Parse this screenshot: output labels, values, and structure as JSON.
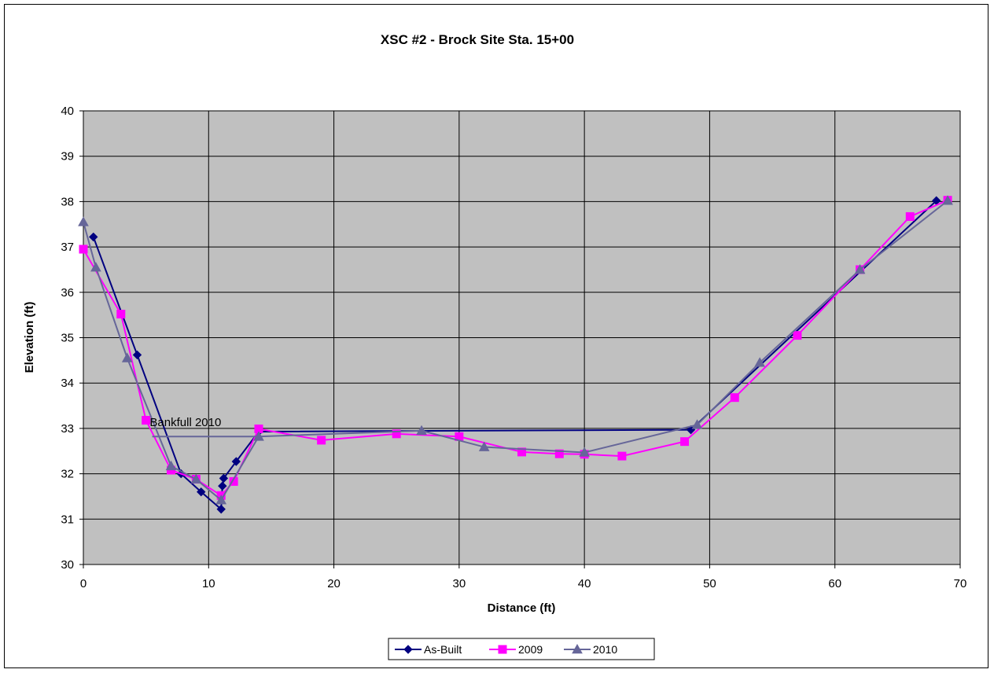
{
  "chart_data": {
    "type": "line",
    "title": "XSC #2 - Brock Site Sta. 15+00",
    "xlabel": "Distance (ft)",
    "ylabel": "Elevation (ft)",
    "xlim": [
      0,
      70
    ],
    "ylim": [
      30,
      40
    ],
    "xticks": [
      0,
      10,
      20,
      30,
      40,
      50,
      60,
      70
    ],
    "yticks": [
      30,
      31,
      32,
      33,
      34,
      35,
      36,
      37,
      38,
      39,
      40
    ],
    "grid": true,
    "legend_position": "bottom",
    "annotation": {
      "text": "Bankfull 2010",
      "x": 5.3,
      "y": 33.15
    },
    "series": [
      {
        "name": "As-Built",
        "color": "#000080",
        "marker": "diamond",
        "points": [
          [
            0.8,
            37.22
          ],
          [
            4.3,
            34.62
          ],
          [
            7.8,
            32.0
          ],
          [
            9.4,
            31.6
          ],
          [
            11.0,
            31.22
          ],
          [
            11.1,
            31.73
          ],
          [
            11.2,
            31.9
          ],
          [
            12.2,
            32.27
          ],
          [
            14.0,
            32.93
          ],
          [
            48.5,
            32.97
          ],
          [
            68.1,
            38.02
          ]
        ]
      },
      {
        "name": "2009",
        "color": "#ff00ff",
        "marker": "square",
        "points": [
          [
            0.0,
            36.95
          ],
          [
            3.0,
            35.52
          ],
          [
            5.0,
            33.18
          ],
          [
            7.0,
            32.08
          ],
          [
            9.0,
            31.88
          ],
          [
            11.0,
            31.52
          ],
          [
            12.0,
            31.83
          ],
          [
            14.0,
            32.99
          ],
          [
            19.0,
            32.74
          ],
          [
            25.0,
            32.88
          ],
          [
            30.0,
            32.82
          ],
          [
            35.0,
            32.48
          ],
          [
            38.0,
            32.44
          ],
          [
            40.0,
            32.43
          ],
          [
            43.0,
            32.39
          ],
          [
            48.0,
            32.71
          ],
          [
            52.0,
            33.68
          ],
          [
            57.0,
            35.05
          ],
          [
            62.0,
            36.5
          ],
          [
            66.0,
            37.67
          ],
          [
            69.0,
            38.03
          ]
        ]
      },
      {
        "name": "2010",
        "color": "#666699",
        "marker": "triangle",
        "points": [
          [
            0.0,
            37.55
          ],
          [
            1.0,
            36.55
          ],
          [
            3.5,
            34.55
          ],
          [
            7.0,
            32.17
          ],
          [
            9.0,
            31.88
          ],
          [
            11.0,
            31.42
          ],
          [
            14.0,
            32.82
          ],
          [
            27.0,
            32.95
          ],
          [
            32.0,
            32.59
          ],
          [
            40.0,
            32.47
          ],
          [
            49.0,
            33.08
          ],
          [
            54.0,
            34.45
          ],
          [
            62.0,
            36.5
          ],
          [
            69.0,
            38.02
          ]
        ]
      },
      {
        "name": "Bankfull 2010",
        "color": "#666699",
        "marker": "none",
        "show_in_legend": false,
        "points": [
          [
            5.5,
            32.82
          ],
          [
            14.0,
            32.82
          ]
        ]
      }
    ]
  }
}
